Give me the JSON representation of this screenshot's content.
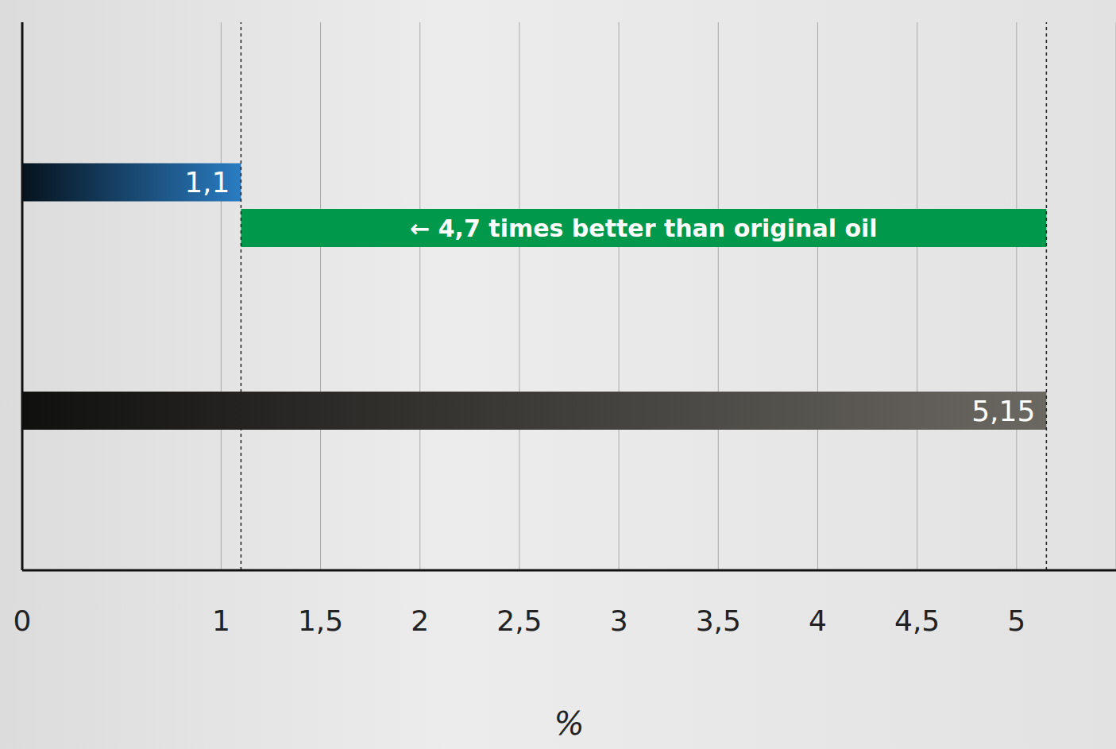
{
  "chart_data": {
    "type": "bar",
    "orientation": "horizontal",
    "categories": [
      null,
      null
    ],
    "values": [
      1.1,
      5.15
    ],
    "value_labels": [
      "1,1",
      "5,15"
    ],
    "colors": [
      "#2a7cc2",
      "#6b6862"
    ],
    "data_labels": true,
    "annotation": "← 4,7 times better than original oil",
    "xlabel": "%",
    "xlim": [
      0,
      5.5
    ],
    "xticks": [
      0,
      1,
      {
        "value": 1.5,
        "label": "1,5"
      },
      2,
      {
        "value": 2.5,
        "label": "2,5"
      },
      3,
      {
        "value": 3.5,
        "label": "3,5"
      },
      4,
      {
        "value": 4.5,
        "label": "4,5"
      },
      5
    ],
    "grid": true,
    "tick_labels": "x"
  }
}
